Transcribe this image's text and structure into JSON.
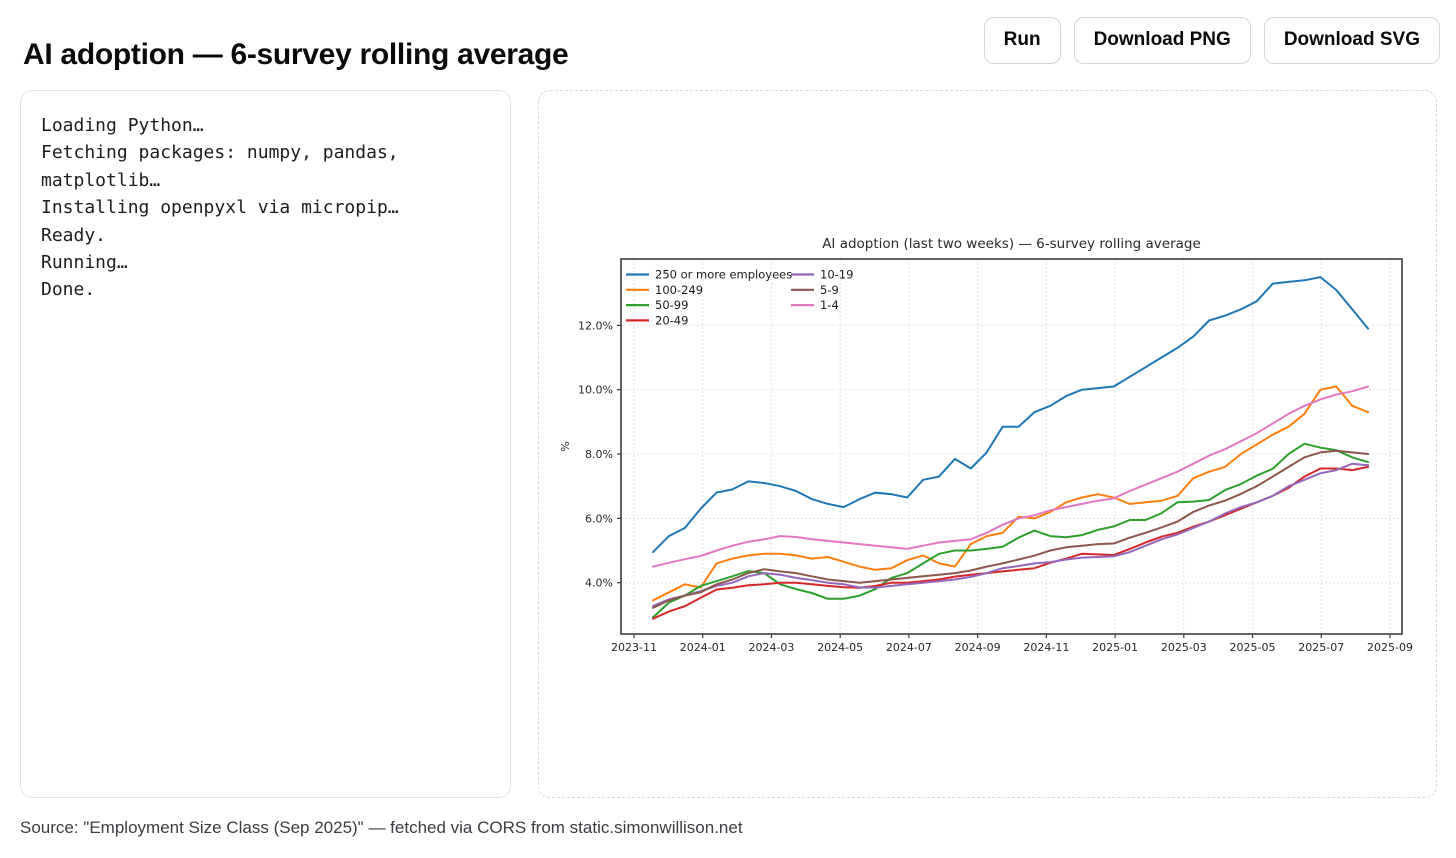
{
  "header": {
    "title": "AI adoption — 6-survey rolling average",
    "buttons": [
      {
        "label": "Run"
      },
      {
        "label": "Download PNG"
      },
      {
        "label": "Download SVG"
      }
    ]
  },
  "console": {
    "lines": [
      "Loading Python…",
      "Fetching packages: numpy, pandas, matplotlib…",
      "Installing openpyxl via micropip…",
      "Ready.",
      "Running…",
      "Done."
    ]
  },
  "footer": {
    "text": "Source: \"Employment Size Class (Sep 2025)\" — fetched via CORS from static.simonwillison.net"
  },
  "chart_data": {
    "type": "line",
    "title": "AI adoption (last two weeks) — 6-survey rolling average",
    "xlabel": "",
    "ylabel": "%",
    "grid": true,
    "legend_position": "upper left",
    "legend_columns": 2,
    "ylim": [
      2.4,
      14.1
    ],
    "y_ticks": [
      4,
      6,
      8,
      10,
      12
    ],
    "y_tick_labels": [
      "4.0%",
      "6.0%",
      "8.0%",
      "10.0%",
      "12.0%"
    ],
    "x_tick_labels": [
      "2023-11",
      "2024-01",
      "2024-03",
      "2024-05",
      "2024-07",
      "2024-09",
      "2024-11",
      "2025-01",
      "2025-03",
      "2025-05",
      "2025-07",
      "2025-09"
    ],
    "x_interval_days": 14,
    "x_dates": [
      "2023-11-12",
      "2023-11-26",
      "2023-12-10",
      "2023-12-24",
      "2024-01-07",
      "2024-01-21",
      "2024-02-04",
      "2024-02-18",
      "2024-03-03",
      "2024-03-17",
      "2024-03-31",
      "2024-04-14",
      "2024-04-28",
      "2024-05-12",
      "2024-05-26",
      "2024-06-09",
      "2024-06-23",
      "2024-07-07",
      "2024-07-21",
      "2024-08-04",
      "2024-08-18",
      "2024-09-01",
      "2024-09-15",
      "2024-09-29",
      "2024-10-13",
      "2024-10-27",
      "2024-11-10",
      "2024-11-24",
      "2024-12-08",
      "2024-12-22",
      "2025-01-05",
      "2025-01-19",
      "2025-02-02",
      "2025-02-16",
      "2025-03-02",
      "2025-03-16",
      "2025-03-30",
      "2025-04-13",
      "2025-04-27",
      "2025-05-11",
      "2025-05-25",
      "2025-06-08",
      "2025-06-22",
      "2025-07-06",
      "2025-07-20",
      "2025-08-03"
    ],
    "series": [
      {
        "name": "250 or more employees",
        "color": "#1f77b4",
        "values": [
          4.95,
          5.45,
          5.7,
          6.3,
          6.8,
          6.9,
          7.15,
          7.1,
          7.0,
          6.85,
          6.6,
          6.45,
          6.35,
          6.6,
          6.8,
          6.75,
          6.65,
          7.2,
          7.3,
          7.85,
          7.55,
          8.05,
          8.85,
          8.85,
          9.3,
          9.5,
          9.8,
          10.0,
          10.05,
          10.1,
          10.4,
          10.7,
          11.0,
          11.3,
          11.65,
          12.15,
          12.3,
          12.5,
          12.75,
          13.3,
          13.35,
          13.4,
          13.5,
          13.1,
          12.5,
          11.9
        ]
      },
      {
        "name": "100-249",
        "color": "#ff7f0e",
        "values": [
          3.45,
          3.7,
          3.95,
          3.85,
          4.6,
          4.75,
          4.85,
          4.9,
          4.9,
          4.85,
          4.75,
          4.8,
          4.65,
          4.5,
          4.4,
          4.45,
          4.7,
          4.85,
          4.6,
          4.5,
          5.2,
          5.45,
          5.55,
          6.05,
          6.0,
          6.2,
          6.5,
          6.65,
          6.75,
          6.65,
          6.45,
          6.5,
          6.55,
          6.7,
          7.25,
          7.45,
          7.6,
          8.0,
          8.3,
          8.6,
          8.85,
          9.25,
          10.0,
          10.1,
          9.5,
          9.3
        ]
      },
      {
        "name": "50-99",
        "color": "#2ca02c",
        "values": [
          2.92,
          3.38,
          3.6,
          3.9,
          4.05,
          4.2,
          4.36,
          4.3,
          3.95,
          3.8,
          3.68,
          3.5,
          3.5,
          3.6,
          3.8,
          4.15,
          4.3,
          4.6,
          4.9,
          5.0,
          5.0,
          5.05,
          5.12,
          5.4,
          5.62,
          5.45,
          5.41,
          5.48,
          5.64,
          5.75,
          5.95,
          5.95,
          6.16,
          6.5,
          6.52,
          6.57,
          6.88,
          7.07,
          7.33,
          7.54,
          8.0,
          8.32,
          8.2,
          8.12,
          7.9,
          7.75
        ]
      },
      {
        "name": "20-49",
        "color": "#d62728",
        "values": [
          2.88,
          3.1,
          3.27,
          3.53,
          3.79,
          3.84,
          3.92,
          3.95,
          4.0,
          4.0,
          3.95,
          3.9,
          3.86,
          3.84,
          3.9,
          4.0,
          4.0,
          4.05,
          4.1,
          4.19,
          4.25,
          4.3,
          4.35,
          4.4,
          4.45,
          4.62,
          4.75,
          4.9,
          4.88,
          4.86,
          5.05,
          5.25,
          5.43,
          5.55,
          5.74,
          5.9,
          6.1,
          6.3,
          6.5,
          6.7,
          6.95,
          7.3,
          7.55,
          7.55,
          7.5,
          7.6
        ]
      },
      {
        "name": "10-19",
        "color": "#9467bd",
        "values": [
          3.28,
          3.48,
          3.6,
          3.74,
          3.9,
          4.0,
          4.2,
          4.3,
          4.25,
          4.15,
          4.08,
          4.0,
          3.95,
          3.85,
          3.85,
          3.9,
          3.95,
          4.0,
          4.05,
          4.1,
          4.18,
          4.3,
          4.45,
          4.52,
          4.6,
          4.64,
          4.72,
          4.78,
          4.8,
          4.82,
          4.95,
          5.15,
          5.35,
          5.5,
          5.7,
          5.9,
          6.15,
          6.35,
          6.5,
          6.7,
          7.0,
          7.2,
          7.4,
          7.5,
          7.7,
          7.65
        ]
      },
      {
        "name": "5-9",
        "color": "#8c564b",
        "values": [
          3.22,
          3.45,
          3.6,
          3.7,
          3.95,
          4.1,
          4.3,
          4.42,
          4.35,
          4.3,
          4.2,
          4.1,
          4.05,
          4.0,
          4.05,
          4.1,
          4.15,
          4.2,
          4.25,
          4.3,
          4.38,
          4.5,
          4.6,
          4.72,
          4.84,
          5.0,
          5.1,
          5.15,
          5.2,
          5.22,
          5.4,
          5.55,
          5.72,
          5.9,
          6.2,
          6.4,
          6.55,
          6.76,
          7.0,
          7.3,
          7.6,
          7.9,
          8.05,
          8.1,
          8.05,
          8.0
        ]
      },
      {
        "name": "1-4",
        "color": "#e377c2",
        "values": [
          4.5,
          4.62,
          4.73,
          4.83,
          5.0,
          5.15,
          5.27,
          5.35,
          5.45,
          5.42,
          5.35,
          5.3,
          5.25,
          5.2,
          5.15,
          5.1,
          5.05,
          5.15,
          5.25,
          5.3,
          5.35,
          5.55,
          5.8,
          6.0,
          6.1,
          6.25,
          6.35,
          6.45,
          6.55,
          6.62,
          6.85,
          7.05,
          7.25,
          7.45,
          7.7,
          7.95,
          8.15,
          8.4,
          8.65,
          8.95,
          9.25,
          9.5,
          9.7,
          9.85,
          9.95,
          10.1
        ]
      }
    ]
  }
}
